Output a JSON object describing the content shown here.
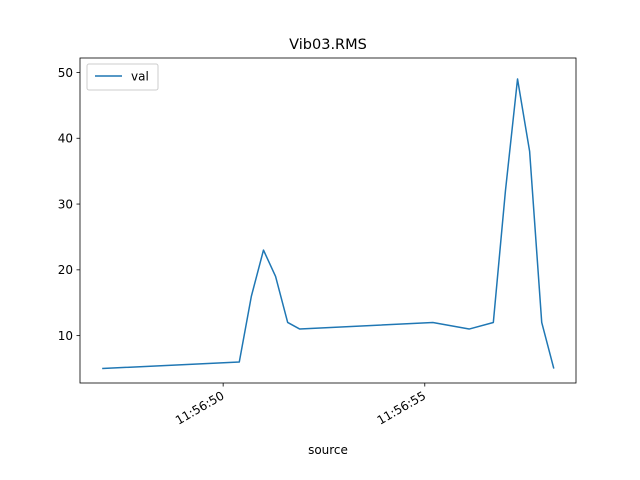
{
  "chart_data": {
    "type": "line",
    "title": "Vib03.RMS",
    "xlabel": "source",
    "ylabel": "",
    "x_ticks": [
      "11:56:50",
      "11:56:55"
    ],
    "y_ticks": [
      10,
      20,
      30,
      40,
      50
    ],
    "legend": {
      "placement": "top-left",
      "entries": [
        "val"
      ]
    },
    "grid": false,
    "series": [
      {
        "name": "val",
        "color": "#1f77b4",
        "x": [
          "11:56:47.0",
          "11:56:50.4",
          "11:56:50.7",
          "11:56:51.0",
          "11:56:51.3",
          "11:56:51.6",
          "11:56:51.9",
          "11:56:55.2",
          "11:56:56.1",
          "11:56:56.7",
          "11:56:57.0",
          "11:56:57.3",
          "11:56:57.6",
          "11:56:57.9",
          "11:56:58.2"
        ],
        "values": [
          5,
          6,
          16,
          23,
          19,
          12,
          11,
          12,
          11,
          12,
          32,
          49,
          38,
          12,
          5
        ]
      }
    ]
  }
}
